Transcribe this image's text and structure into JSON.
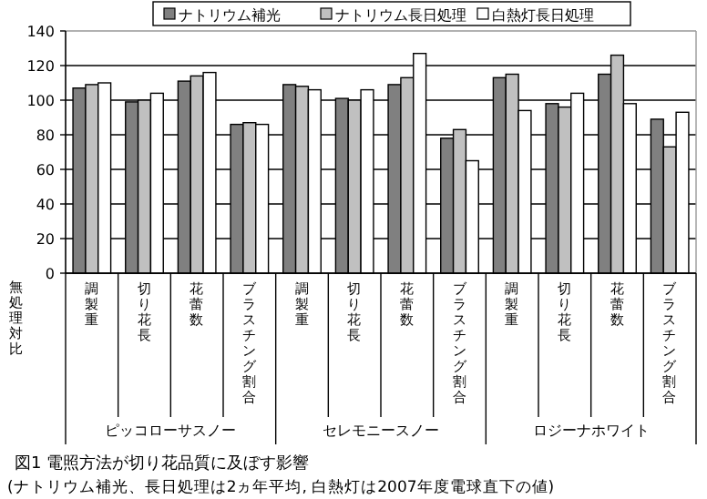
{
  "chart_data": {
    "type": "bar",
    "title": "図1  電照方法が切り花品質に及ぼす影響",
    "subtitle": "(ナトリウム補光、長日処理は2ヵ年平均, 白熱灯は2007年度電球直下の値)",
    "ylabel": "無処理対比",
    "categories": [
      "調製重",
      "切り花長",
      "花蕾数",
      "ブラスチング割合",
      "調製重",
      "切り花長",
      "花蕾数",
      "ブラスチング割合",
      "調製重",
      "切り花長",
      "花蕾数",
      "ブラスチング割合"
    ],
    "annotations": [
      "ピッコローサスノー",
      "セレモニースノー",
      "ロジーナホワイト"
    ],
    "series": [
      {
        "name": "ナトリウム補光",
        "color": "#808080",
        "values": [
          107,
          99,
          111,
          86,
          109,
          101,
          109,
          78,
          113,
          98,
          115,
          89
        ]
      },
      {
        "name": "ナトリウム長日処理",
        "color": "#c0c0c0",
        "values": [
          109,
          100,
          114,
          87,
          108,
          100,
          113,
          83,
          115,
          96,
          126,
          73
        ]
      },
      {
        "name": "白熱灯長日処理",
        "color": "#ffffff",
        "values": [
          110,
          104,
          116,
          86,
          106,
          106,
          127,
          65,
          94,
          104,
          98,
          93
        ]
      }
    ],
    "ylim": [
      0,
      140
    ],
    "yticks": [
      0,
      20,
      40,
      60,
      80,
      100,
      120,
      140
    ],
    "grid": "y",
    "legend": "top right"
  }
}
